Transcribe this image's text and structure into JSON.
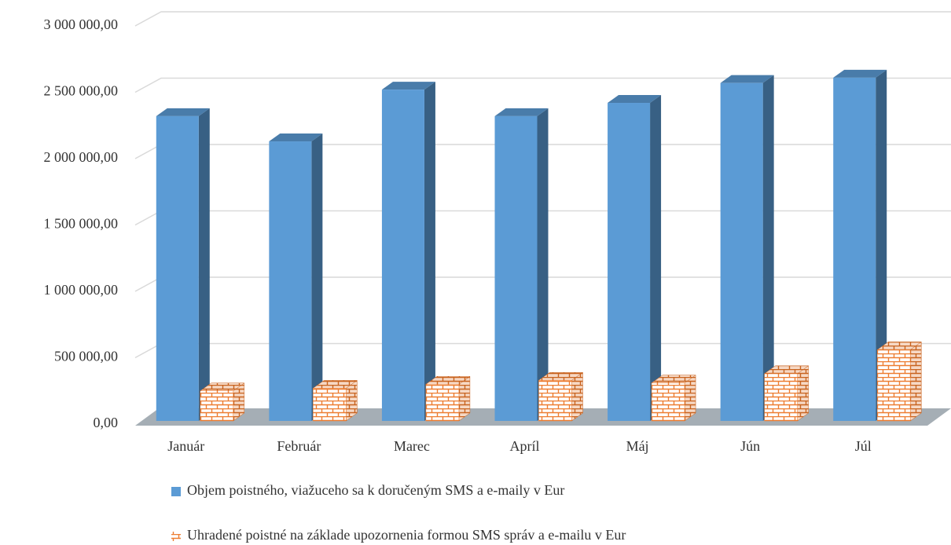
{
  "chart_data": {
    "type": "bar3d",
    "categories": [
      "Január",
      "Február",
      "Marec",
      "Apríl",
      "Máj",
      "Jún",
      "Júl"
    ],
    "series": [
      {
        "name": "Objem poistného, viažuceho sa k doručeným SMS a e-maily v Eur",
        "color": "#5b9bd5",
        "values": [
          2320000,
          2130000,
          2520000,
          2320000,
          2420000,
          2570000,
          2610000
        ]
      },
      {
        "name": "Uhradené poistné na základe upozornenia formou SMS správ a e-mailu v Eur",
        "color": "#ed7d31",
        "values": [
          250000,
          270000,
          300000,
          330000,
          310000,
          380000,
          560000
        ]
      }
    ],
    "ylim": [
      0,
      3000000
    ],
    "yticks": [
      {
        "value": 0,
        "label": "0,00"
      },
      {
        "value": 500000,
        "label": "500 000,00"
      },
      {
        "value": 1000000,
        "label": "1 000 000,00"
      },
      {
        "value": 1500000,
        "label": "1 500 000,00"
      },
      {
        "value": 2000000,
        "label": "2 000 000,00"
      },
      {
        "value": 2500000,
        "label": "2 500 000,00"
      },
      {
        "value": 3000000,
        "label": "3 000 000,00"
      }
    ],
    "grid": true
  }
}
